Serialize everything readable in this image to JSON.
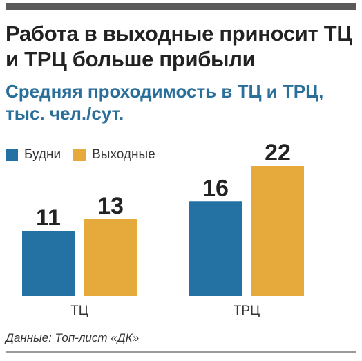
{
  "title": "Работа в выходные приносит ТЦ и ТРЦ больше прибыли",
  "subtitle": "Средняя проходимость в ТЦ и ТРЦ, тыс. чел./сут.",
  "source": "Данные: Топ-лист «ДК»",
  "colors": {
    "weekdays": "#2471a3",
    "weekends": "#e6a93c",
    "title": "#222222",
    "subtitle": "#2a6e9a"
  },
  "chart_data": {
    "type": "bar",
    "categories": [
      "ТЦ",
      "ТРЦ"
    ],
    "series": [
      {
        "name": "Будни",
        "values": [
          11,
          16
        ]
      },
      {
        "name": "Выходные",
        "values": [
          13,
          22
        ]
      }
    ],
    "ylim": [
      0,
      22
    ],
    "grid": false,
    "legend_placement": "top-left"
  }
}
